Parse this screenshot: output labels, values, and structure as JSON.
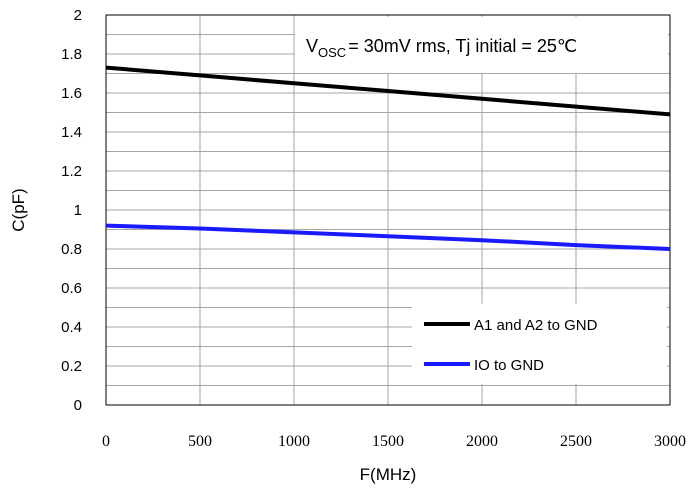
{
  "chart_data": {
    "type": "line",
    "xlabel": "F(MHz)",
    "ylabel": "C(pF)",
    "xlim": [
      0,
      3000
    ],
    "ylim": [
      0,
      2
    ],
    "x_ticks": [
      "0",
      "500",
      "1000",
      "1500",
      "2000",
      "2500",
      "3000"
    ],
    "y_ticks": [
      "0",
      "0.2",
      "0.4",
      "0.6",
      "0.8",
      "1",
      "1.2",
      "1.4",
      "1.6",
      "1.8",
      "2"
    ],
    "grid": true,
    "legend_position": "bottom-right",
    "annotation": {
      "prefix": "V",
      "subscript": "OSC",
      "rest": "= 30mV rms, Tj initial = 25℃"
    },
    "series": [
      {
        "name": "A1 and A2 to GND",
        "color": "#000000",
        "x": [
          0,
          500,
          1000,
          1500,
          2000,
          2500,
          3000
        ],
        "values": [
          1.73,
          1.69,
          1.65,
          1.61,
          1.57,
          1.53,
          1.49
        ]
      },
      {
        "name": "IO to GND",
        "color": "#1a1aff",
        "x": [
          0,
          500,
          1000,
          1500,
          2000,
          2500,
          3000
        ],
        "values": [
          0.92,
          0.905,
          0.885,
          0.865,
          0.845,
          0.82,
          0.8
        ]
      }
    ]
  }
}
